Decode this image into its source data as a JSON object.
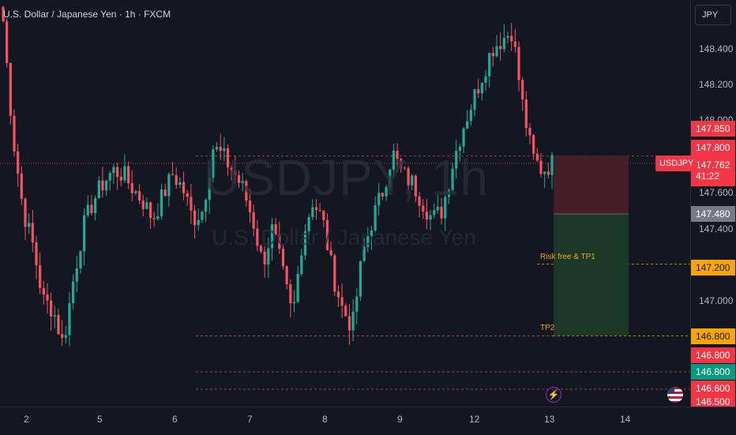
{
  "header": {
    "title": "U.S. Dollar / Japanese Yen · 1h · FXCM"
  },
  "watermark": {
    "symbol": "USDJPY, 1h",
    "name": "U.S. Dollar / Japanese Yen"
  },
  "currency_button": "JPY",
  "price_axis": {
    "ticks": [
      "148.400",
      "148.200",
      "148.000",
      "147.600",
      "147.400",
      "147.000"
    ],
    "tags": {
      "t147850": "147.850",
      "t147800": "147.800",
      "current_price": "147.762",
      "countdown": "41:22",
      "t147480": "147.480",
      "t147200": "147.200",
      "t146800a": "146.800",
      "t146800b": "146.800",
      "t146800c": "146.800",
      "t146600": "146.600",
      "t146500": "146.500"
    }
  },
  "symbol_tag": "USDJPY",
  "position_labels": {
    "tp1": "Risk free & TP1",
    "tp2": "TP2"
  },
  "time_axis": {
    "ticks": [
      "2",
      "5",
      "6",
      "7",
      "8",
      "9",
      "12",
      "13",
      "14"
    ]
  },
  "icons": {
    "flash": "flash-icon",
    "flag": "us-flag-icon"
  },
  "colors": {
    "up": "#22ab94",
    "down": "#f7525f",
    "background": "#131722",
    "risk_zone": "#4a1f28",
    "reward_zone": "#1c3a2a",
    "tp_line": "#f7a600"
  },
  "chart_data": {
    "type": "candlestick",
    "symbol": "USDJPY",
    "timeframe": "1h",
    "ylim": [
      146.5,
      148.6
    ],
    "x_labels": [
      "2",
      "5",
      "6",
      "7",
      "8",
      "9",
      "12",
      "13",
      "14"
    ],
    "key_closes": [
      148.55,
      147.9,
      147.5,
      147.3,
      147.0,
      146.95,
      146.75,
      147.1,
      147.4,
      147.55,
      147.65,
      147.72,
      147.7,
      147.62,
      147.55,
      147.45,
      147.58,
      147.7,
      147.62,
      147.45,
      147.5,
      147.85,
      147.8,
      147.72,
      147.62,
      147.45,
      147.2,
      147.4,
      147.15,
      146.9,
      147.35,
      147.55,
      147.45,
      147.15,
      146.95,
      146.85,
      147.25,
      147.45,
      147.6,
      147.82,
      147.7,
      147.65,
      147.55,
      147.45,
      147.5,
      147.75,
      147.95,
      148.1,
      148.25,
      148.4,
      148.45,
      148.5,
      148.1,
      147.8,
      147.72,
      147.76
    ],
    "position": {
      "type": "short",
      "entry": 147.76,
      "stop": 147.85,
      "tp1": 147.2,
      "tp2": 146.8
    },
    "horizontal_levels": [
      147.8,
      147.2,
      146.8,
      146.6,
      146.5
    ]
  }
}
